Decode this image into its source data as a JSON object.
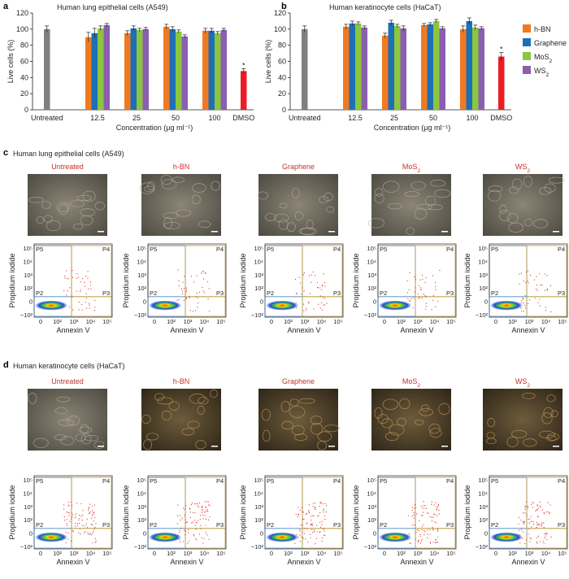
{
  "panel_a": {
    "letter": "a",
    "title": "Human lung epithelial cells (A549)"
  },
  "panel_b": {
    "letter": "b",
    "title": "Human keratinocyte cells (HaCaT)"
  },
  "panel_c": {
    "letter": "c",
    "title": "Human lung epithelial cells (A549)",
    "columns": [
      "Untreated",
      "h-BN",
      "Graphene",
      "MoS2",
      "WS2"
    ]
  },
  "panel_d": {
    "letter": "d",
    "title": "Human keratinocyte cells (HaCaT)",
    "columns": [
      "Untreated",
      "h-BN",
      "Graphene",
      "MoS2",
      "WS2"
    ]
  },
  "flow": {
    "xlabel": "Annexin V",
    "ylabel": "Propidium iodide",
    "gates": [
      "P5",
      "P4",
      "P2",
      "P3"
    ],
    "xticks": [
      "0",
      "10²",
      "10³",
      "10⁴",
      "10⁵"
    ],
    "yticks": [
      "10⁵",
      "10⁴",
      "10³",
      "10²",
      "0",
      "−10²"
    ]
  },
  "colors": {
    "untreated": "#808080",
    "hbn": "#f07a22",
    "graphene": "#1f6fb5",
    "mos2": "#8cc63f",
    "ws2": "#8a5fb0",
    "dmso": "#ed1c24",
    "column_title": "#c9302c"
  },
  "chart_data": [
    {
      "type": "bar",
      "title": "Human lung epithelial cells (A549)",
      "xlabel": "Concentration (μg ml⁻¹)",
      "ylabel": "Live cells (%)",
      "ylim": [
        0,
        120
      ],
      "yticks": [
        0,
        20,
        40,
        60,
        80,
        100,
        120
      ],
      "untreated_label": "Untreated",
      "untreated": {
        "value": 100,
        "err": 4
      },
      "categories": [
        "12.5",
        "25",
        "50",
        "100"
      ],
      "series": [
        {
          "name": "h-BN",
          "values": [
            90,
            95,
            103,
            98
          ],
          "err": [
            6,
            3,
            3,
            3
          ]
        },
        {
          "name": "Graphene",
          "values": [
            95,
            101,
            100,
            98
          ],
          "err": [
            6,
            3,
            3,
            3
          ]
        },
        {
          "name": "MoS2",
          "values": [
            101,
            99,
            97,
            95
          ],
          "err": [
            3,
            2,
            2,
            2
          ]
        },
        {
          "name": "WS2",
          "values": [
            105,
            100,
            91,
            99
          ],
          "err": [
            2,
            2,
            2,
            2
          ]
        }
      ],
      "dmso_label": "DMSO",
      "dmso": {
        "value": 48,
        "err": 3
      },
      "dmso_marker": "*"
    },
    {
      "type": "bar",
      "title": "Human keratinocyte cells (HaCaT)",
      "xlabel": "Concentration (μg ml⁻¹)",
      "ylabel": "Live cells (%)",
      "ylim": [
        0,
        120
      ],
      "yticks": [
        0,
        20,
        40,
        60,
        80,
        100,
        120
      ],
      "untreated_label": "Untreated",
      "untreated": {
        "value": 100,
        "err": 4
      },
      "categories": [
        "12.5",
        "25",
        "50",
        "100"
      ],
      "series": [
        {
          "name": "h-BN",
          "values": [
            103,
            92,
            105,
            100
          ],
          "err": [
            3,
            3,
            2,
            4
          ]
        },
        {
          "name": "Graphene",
          "values": [
            107,
            108,
            106,
            110
          ],
          "err": [
            3,
            3,
            2,
            4
          ]
        },
        {
          "name": "MoS2",
          "values": [
            107,
            104,
            110,
            102
          ],
          "err": [
            2,
            2,
            2,
            3
          ]
        },
        {
          "name": "WS2",
          "values": [
            102,
            101,
            101,
            101
          ],
          "err": [
            2,
            3,
            2,
            2
          ]
        }
      ],
      "dmso_label": "DMSO",
      "dmso": {
        "value": 66,
        "err": 5
      },
      "dmso_marker": "*",
      "legend": [
        "h-BN",
        "Graphene",
        "MoS2",
        "WS2"
      ],
      "legend_position": "right"
    }
  ]
}
